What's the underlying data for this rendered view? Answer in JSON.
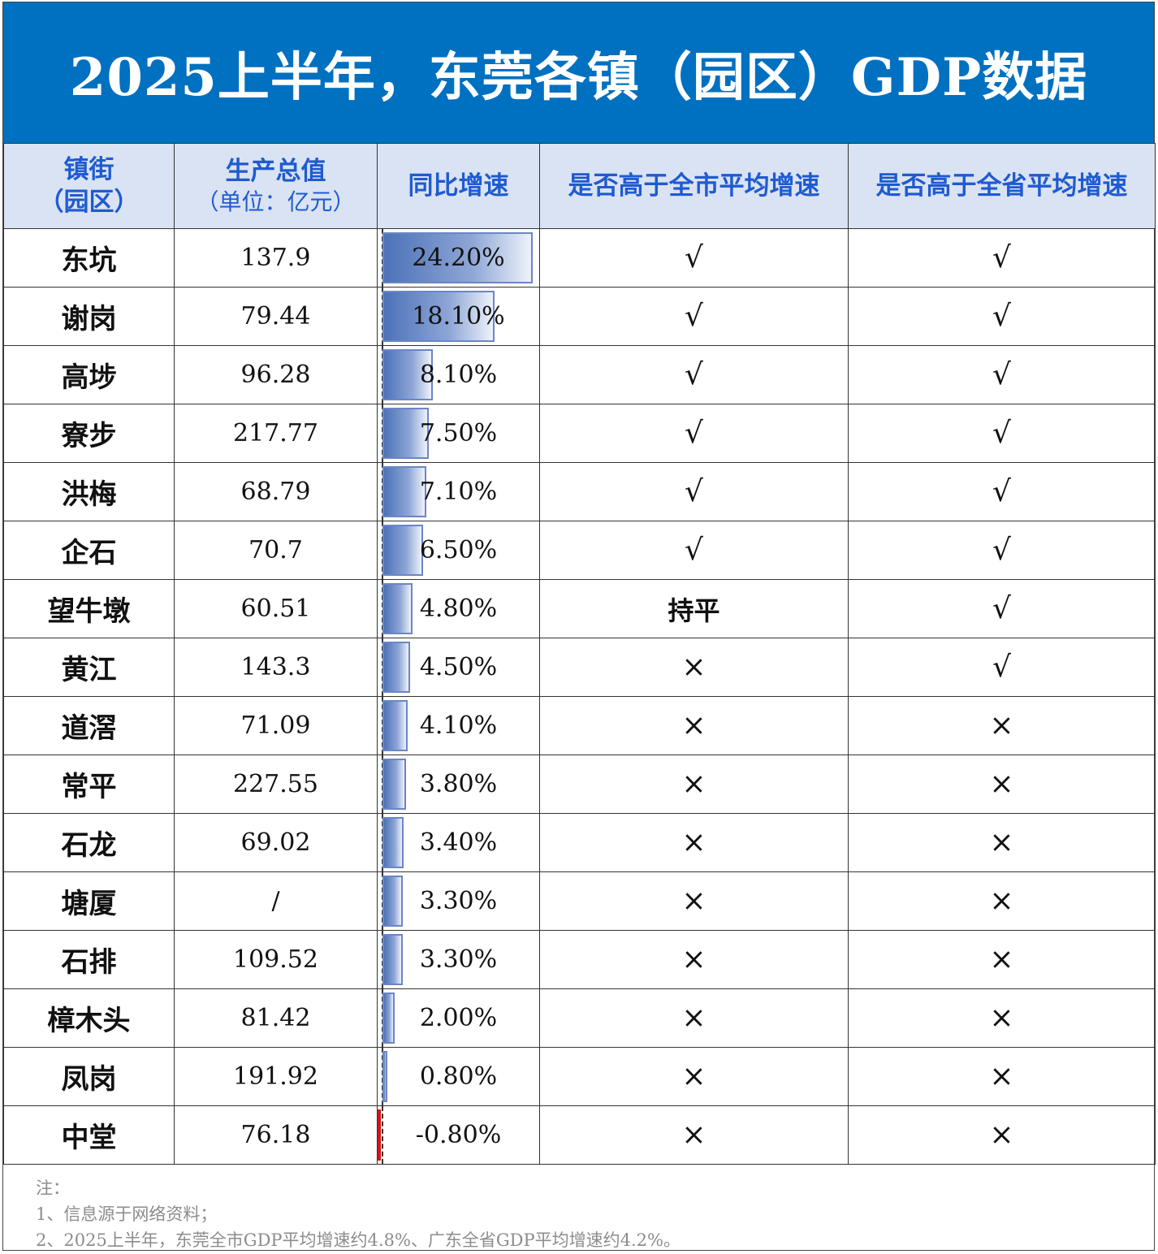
{
  "title": "2025上半年，东莞各镇（园区）GDP数据",
  "headers": {
    "town": [
      "镇街",
      "（园区）"
    ],
    "gdp": [
      "生产总值",
      "（单位：亿元）"
    ],
    "growth": "同比增速",
    "above_city": "是否高于全市平均增速",
    "above_province": "是否高于全省平均增速"
  },
  "chart_data": {
    "type": "table",
    "columns": [
      "镇街（园区）",
      "生产总值（单位：亿元）",
      "同比增速",
      "是否高于全市平均增速",
      "是否高于全省平均增速"
    ],
    "rows": [
      {
        "town": "东坑",
        "gdp": "137.9",
        "growth_label": "24.20%",
        "growth": 24.2,
        "above_city": "√",
        "above_province": "√"
      },
      {
        "town": "谢岗",
        "gdp": "79.44",
        "growth_label": "18.10%",
        "growth": 18.1,
        "above_city": "√",
        "above_province": "√"
      },
      {
        "town": "高埗",
        "gdp": "96.28",
        "growth_label": "8.10%",
        "growth": 8.1,
        "above_city": "√",
        "above_province": "√"
      },
      {
        "town": "寮步",
        "gdp": "217.77",
        "growth_label": "7.50%",
        "growth": 7.5,
        "above_city": "√",
        "above_province": "√"
      },
      {
        "town": "洪梅",
        "gdp": "68.79",
        "growth_label": "7.10%",
        "growth": 7.1,
        "above_city": "√",
        "above_province": "√"
      },
      {
        "town": "企石",
        "gdp": "70.7",
        "growth_label": "6.50%",
        "growth": 6.5,
        "above_city": "√",
        "above_province": "√"
      },
      {
        "town": "望牛墩",
        "gdp": "60.51",
        "growth_label": "4.80%",
        "growth": 4.8,
        "above_city": "持平",
        "above_province": "√"
      },
      {
        "town": "黄江",
        "gdp": "143.3",
        "growth_label": "4.50%",
        "growth": 4.5,
        "above_city": "×",
        "above_province": "√"
      },
      {
        "town": "道滘",
        "gdp": "71.09",
        "growth_label": "4.10%",
        "growth": 4.1,
        "above_city": "×",
        "above_province": "×"
      },
      {
        "town": "常平",
        "gdp": "227.55",
        "growth_label": "3.80%",
        "growth": 3.8,
        "above_city": "×",
        "above_province": "×"
      },
      {
        "town": "石龙",
        "gdp": "69.02",
        "growth_label": "3.40%",
        "growth": 3.4,
        "above_city": "×",
        "above_province": "×"
      },
      {
        "town": "塘厦",
        "gdp": "/",
        "growth_label": "3.30%",
        "growth": 3.3,
        "above_city": "×",
        "above_province": "×"
      },
      {
        "town": "石排",
        "gdp": "109.52",
        "growth_label": "3.30%",
        "growth": 3.3,
        "above_city": "×",
        "above_province": "×"
      },
      {
        "town": "樟木头",
        "gdp": "81.42",
        "growth_label": "2.00%",
        "growth": 2.0,
        "above_city": "×",
        "above_province": "×"
      },
      {
        "town": "凤岗",
        "gdp": "191.92",
        "growth_label": "0.80%",
        "growth": 0.8,
        "above_city": "×",
        "above_province": "×"
      },
      {
        "town": "中堂",
        "gdp": "76.18",
        "growth_label": "-0.80%",
        "growth": -0.8,
        "above_city": "×",
        "above_province": "×"
      }
    ],
    "bar_colors": {
      "positive": "#4c72b8",
      "negative": "#e02020"
    }
  },
  "notes": [
    "注：",
    "1、信息源于网络资料；",
    "2、2025上半年，东莞全市GDP平均增速约4.8%、广东全省GDP平均增速约4.2%。"
  ],
  "colors": {
    "title_bg": "#0070c0",
    "header_bg": "#dae3f3",
    "header_text": "#1f5bd0"
  }
}
